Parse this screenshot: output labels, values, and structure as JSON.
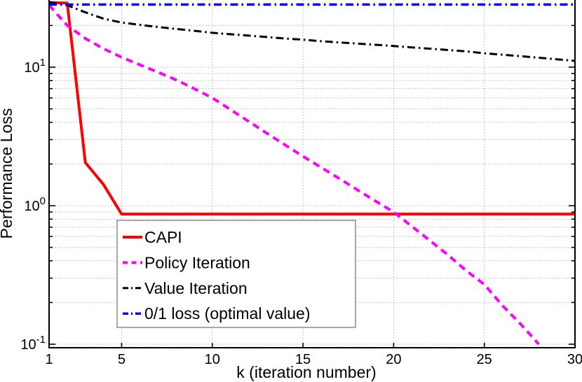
{
  "chart_data": {
    "type": "line",
    "title": "",
    "xlabel": "k (iteration number)",
    "ylabel": "Performance Loss",
    "x_scale": "linear",
    "y_scale": "log",
    "xlim": [
      1,
      30
    ],
    "ylim": [
      0.1,
      30.5
    ],
    "grid": true,
    "grid_style": "dotted",
    "grid_color": "#b4b4b4",
    "axis_color": "#000000",
    "background_color": "#ffffff",
    "x_ticks": [
      1,
      5,
      10,
      15,
      20,
      25,
      30
    ],
    "x_tick_labels": [
      "1",
      "5",
      "10",
      "15",
      "20",
      "25",
      "30"
    ],
    "x_gridlines": [
      5,
      10,
      15,
      20,
      25
    ],
    "y_ticks": [
      {
        "value": 10,
        "base": "10",
        "exp": "1"
      },
      {
        "value": 1,
        "base": "10",
        "exp": "0"
      },
      {
        "value": 0.1,
        "base": "10",
        "exp": "-1"
      }
    ],
    "y_minor_gridlines": [
      20,
      9,
      8,
      7,
      6,
      5,
      4,
      3,
      2,
      0.9,
      0.8,
      0.7,
      0.6,
      0.5,
      0.4,
      0.3,
      0.2
    ],
    "legend_position": "south-west-inside",
    "series": [
      {
        "name": "CAPI",
        "id": "capi",
        "color": "#ff0000",
        "style": "solid",
        "width": 4,
        "points": [
          [
            1,
            29.3
          ],
          [
            2,
            29.0
          ],
          [
            3,
            2.05
          ],
          [
            4,
            1.42
          ],
          [
            5,
            0.87
          ],
          [
            30,
            0.87
          ]
        ]
      },
      {
        "name": "Policy Iteration",
        "id": "policy-iteration",
        "color": "#ff00ff",
        "style": "dashed",
        "width": 4,
        "points": [
          [
            1,
            28.0
          ],
          [
            2,
            20.0
          ],
          [
            3,
            16.1
          ],
          [
            4,
            13.6
          ],
          [
            5,
            11.8
          ],
          [
            6,
            10.4
          ],
          [
            7,
            9.2
          ],
          [
            8,
            8.1
          ],
          [
            9,
            7.0
          ],
          [
            10,
            6.0
          ],
          [
            11,
            4.94
          ],
          [
            12,
            4.06
          ],
          [
            13,
            3.34
          ],
          [
            14,
            2.75
          ],
          [
            15,
            2.27
          ],
          [
            16,
            1.89
          ],
          [
            17,
            1.57
          ],
          [
            18,
            1.3
          ],
          [
            19,
            1.08
          ],
          [
            20,
            0.9
          ],
          [
            21,
            0.71
          ],
          [
            22,
            0.56
          ],
          [
            23,
            0.44
          ],
          [
            24,
            0.34
          ],
          [
            25,
            0.27
          ],
          [
            26,
            0.19
          ],
          [
            27,
            0.14
          ],
          [
            28,
            0.1
          ]
        ]
      },
      {
        "name": "Value Iteration",
        "id": "value-iteration",
        "color": "#000000",
        "style": "dash-dot",
        "width": 3,
        "points": [
          [
            1,
            29.5
          ],
          [
            2,
            28.0
          ],
          [
            3,
            24.9
          ],
          [
            4,
            22.4
          ],
          [
            5,
            21.0
          ],
          [
            6,
            20.2
          ],
          [
            7,
            19.5
          ],
          [
            8,
            18.9
          ],
          [
            9,
            18.3
          ],
          [
            10,
            17.7
          ],
          [
            11,
            17.3
          ],
          [
            12,
            16.9
          ],
          [
            13,
            16.5
          ],
          [
            14,
            16.1
          ],
          [
            15,
            15.8
          ],
          [
            16,
            15.4
          ],
          [
            17,
            15.1
          ],
          [
            18,
            14.8
          ],
          [
            19,
            14.5
          ],
          [
            20,
            14.2
          ],
          [
            21,
            13.9
          ],
          [
            22,
            13.6
          ],
          [
            23,
            13.3
          ],
          [
            24,
            13.0
          ],
          [
            25,
            12.6
          ],
          [
            26,
            12.3
          ],
          [
            27,
            12.0
          ],
          [
            28,
            11.7
          ],
          [
            29,
            11.4
          ],
          [
            30,
            11.1
          ]
        ]
      },
      {
        "name": "0/1 loss (optimal value)",
        "id": "zero-one-loss",
        "color": "#0000ff",
        "style": "dash-dot",
        "width": 3.5,
        "points": [
          [
            1,
            28.3
          ],
          [
            30,
            28.3
          ]
        ]
      }
    ]
  }
}
